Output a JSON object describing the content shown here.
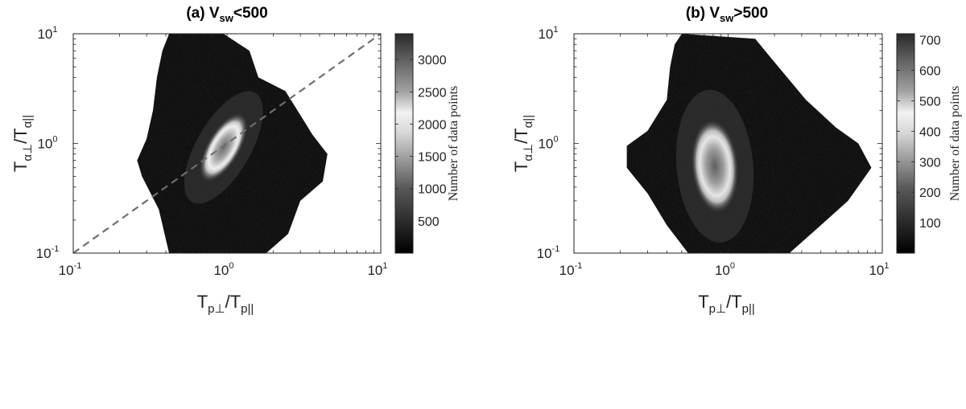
{
  "chart_data": [
    {
      "type": "heatmap",
      "title": {
        "prefix": "(a) V",
        "sub": "sw",
        "suffix": "<500"
      },
      "xlabel": {
        "t1": "T",
        "s1": "p⊥",
        "t2": "/T",
        "s2": "p||"
      },
      "ylabel": {
        "t1": "T",
        "s1": "α⊥",
        "t2": "/T",
        "s2": "α||"
      },
      "x_scale": "log",
      "y_scale": "log",
      "xlim": [
        0.1,
        10
      ],
      "ylim": [
        0.1,
        10
      ],
      "x_ticks": [
        {
          "base": "10",
          "exp": "-1"
        },
        {
          "base": "10",
          "exp": "0"
        },
        {
          "base": "10",
          "exp": "1"
        }
      ],
      "y_ticks": [
        {
          "base": "10",
          "exp": "-1"
        },
        {
          "base": "10",
          "exp": "0"
        },
        {
          "base": "10",
          "exp": "1"
        }
      ],
      "reference_line": {
        "style": "dashed",
        "color": "#6e6e6e",
        "x": [
          0.1,
          10
        ],
        "y": [
          0.1,
          10
        ]
      },
      "colorbar": {
        "label": "Number of data points",
        "range": [
          0,
          3400
        ],
        "ticks": [
          "3000",
          "2500",
          "2000",
          "1500",
          "1000",
          "500"
        ],
        "tick_values": [
          3000,
          2500,
          2000,
          1500,
          1000,
          500
        ]
      },
      "distribution": {
        "description": "grey-scale density of counts; bright ring near the peak",
        "peak_x": 0.9,
        "peak_y": 0.9,
        "ring_color": "#e6e6e6",
        "core_color": "#6b6b6b",
        "envelope": [
          [
            0.42,
            10
          ],
          [
            0.95,
            10
          ],
          [
            1.4,
            7
          ],
          [
            1.6,
            4
          ],
          [
            2.4,
            3
          ],
          [
            3.6,
            1.2
          ],
          [
            4.5,
            0.8
          ],
          [
            4.2,
            0.45
          ],
          [
            3.0,
            0.3
          ],
          [
            2.5,
            0.15
          ],
          [
            1.8,
            0.1
          ],
          [
            0.42,
            0.1
          ],
          [
            0.36,
            0.25
          ],
          [
            0.28,
            0.5
          ],
          [
            0.26,
            0.7
          ],
          [
            0.3,
            1.1
          ],
          [
            0.33,
            2.0
          ],
          [
            0.35,
            4.0
          ],
          [
            0.38,
            7.0
          ]
        ],
        "ring": {
          "cx": 0.95,
          "cy": 0.92,
          "major": 1.55,
          "minor": 1.3,
          "angle_deg": 60
        }
      }
    },
    {
      "type": "heatmap",
      "title": {
        "prefix": "(b) V",
        "sub": "sw",
        "suffix": ">500"
      },
      "xlabel": {
        "t1": "T",
        "s1": "p⊥",
        "t2": "/T",
        "s2": "p||"
      },
      "ylabel": {
        "t1": "T",
        "s1": "α⊥",
        "t2": "/T",
        "s2": "α||"
      },
      "x_scale": "log",
      "y_scale": "log",
      "xlim": [
        0.1,
        10
      ],
      "ylim": [
        0.1,
        10
      ],
      "x_ticks": [
        {
          "base": "10",
          "exp": "-1"
        },
        {
          "base": "10",
          "exp": "0"
        },
        {
          "base": "10",
          "exp": "1"
        }
      ],
      "y_ticks": [
        {
          "base": "10",
          "exp": "-1"
        },
        {
          "base": "10",
          "exp": "0"
        },
        {
          "base": "10",
          "exp": "1"
        }
      ],
      "colorbar": {
        "label": "Number of data points",
        "range": [
          0,
          720
        ],
        "ticks": [
          "700",
          "600",
          "500",
          "400",
          "300",
          "200",
          "100"
        ],
        "tick_values": [
          700,
          600,
          500,
          400,
          300,
          200,
          100
        ]
      },
      "distribution": {
        "description": "grey-scale density of counts; bright elongated ring near the peak",
        "peak_x": 0.8,
        "peak_y": 0.75,
        "ring_color": "#dcdcdc",
        "core_color": "#5e5e5e",
        "envelope": [
          [
            0.5,
            10
          ],
          [
            1.5,
            9
          ],
          [
            1.9,
            6
          ],
          [
            3.2,
            2.5
          ],
          [
            5.0,
            1.4
          ],
          [
            7.0,
            1.0
          ],
          [
            8.5,
            0.6
          ],
          [
            6.0,
            0.3
          ],
          [
            4.0,
            0.18
          ],
          [
            2.5,
            0.1
          ],
          [
            0.55,
            0.1
          ],
          [
            0.4,
            0.18
          ],
          [
            0.3,
            0.35
          ],
          [
            0.22,
            0.6
          ],
          [
            0.22,
            0.95
          ],
          [
            0.3,
            1.3
          ],
          [
            0.4,
            2.5
          ],
          [
            0.42,
            5.0
          ],
          [
            0.45,
            8.0
          ]
        ],
        "ring": {
          "cx": 0.82,
          "cy": 0.62,
          "major": 1.7,
          "minor": 1.45,
          "angle_deg": 95
        }
      }
    }
  ]
}
